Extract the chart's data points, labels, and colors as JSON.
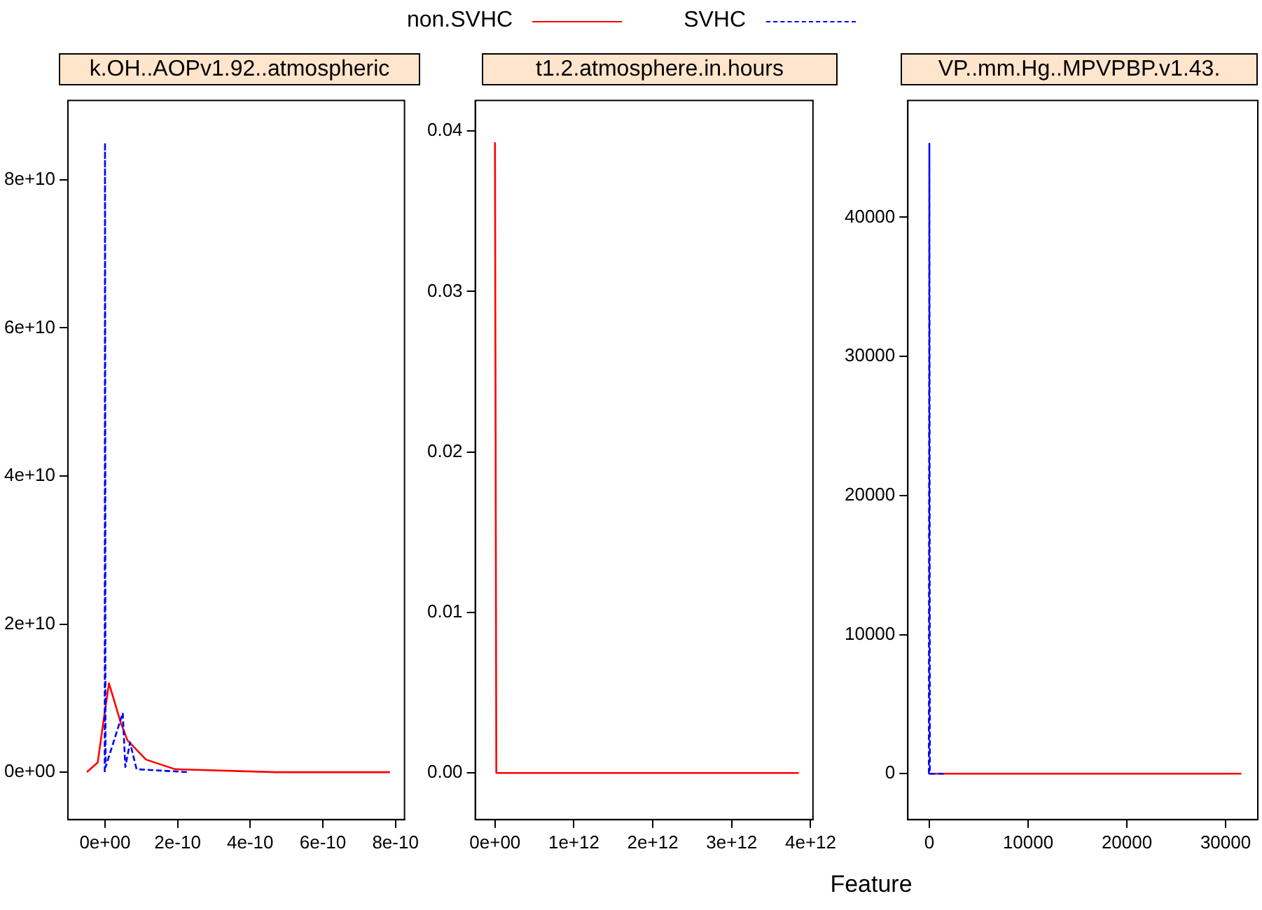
{
  "chart_data": [
    {
      "type": "line",
      "title": "k.OH..AOPv1.92..atmospheric",
      "legend": "top",
      "grid": false,
      "marker": "none",
      "xlim": [
        -1.02e-10,
        8.25e-10
      ],
      "xticks": [
        {
          "value": 0,
          "label": "0e+00"
        },
        {
          "value": 2e-10,
          "label": "2e-10"
        },
        {
          "value": 4e-10,
          "label": "4e-10"
        },
        {
          "value": 6e-10,
          "label": "6e-10"
        },
        {
          "value": 8e-10,
          "label": "8e-10"
        }
      ],
      "ylim": [
        -6400000000.0,
        90700000000.0
      ],
      "yticks": [
        {
          "value": 0,
          "label": "0e+00"
        },
        {
          "value": 20000000000.0,
          "label": "2e+10"
        },
        {
          "value": 40000000000.0,
          "label": "4e+10"
        },
        {
          "value": 60000000000.0,
          "label": "6e+10"
        },
        {
          "value": 80000000000.0,
          "label": "8e+10"
        }
      ],
      "series": [
        {
          "name": "non.SVHC",
          "color": "#ff0000",
          "line_style": "solid",
          "x": [
            -5e-11,
            -2e-11,
            -5e-12,
            1.1e-11,
            4.4e-11,
            6.2e-11,
            1.13e-10,
            1.93e-10,
            4.7e-10,
            7.85e-10
          ],
          "values": [
            0,
            1300000000.0,
            6600000000.0,
            12000000000.0,
            6600000000.0,
            4300000000.0,
            1700000000.0,
            400000000.0,
            0,
            0
          ]
        },
        {
          "name": "SVHC",
          "color": "#0000ff",
          "line_style": "dashed",
          "x": [
            -7e-13,
            1e-13,
            9e-13,
            1.1e-12,
            1.8e-12,
            4.9e-11,
            5.6e-11,
            6.9e-11,
            8.7e-11,
            2.3e-10
          ],
          "values": [
            0,
            85000000000.0,
            42000000000.0,
            13000000000.0,
            700000000.0,
            8000000000.0,
            700000000.0,
            4000000000.0,
            400000000.0,
            0
          ]
        }
      ]
    },
    {
      "type": "line",
      "title": "t1.2.atmosphere.in.hours",
      "xlabel": "Feature",
      "legend": false,
      "grid": false,
      "marker": "none",
      "xlim": [
        -250000000000.0,
        4030000000000.0
      ],
      "xticks": [
        {
          "value": 0,
          "label": "0e+00"
        },
        {
          "value": 1000000000000.0,
          "label": "1e+12"
        },
        {
          "value": 2000000000000.0,
          "label": "2e+12"
        },
        {
          "value": 3000000000000.0,
          "label": "3e+12"
        },
        {
          "value": 4000000000000.0,
          "label": "4e+12"
        }
      ],
      "ylim": [
        -0.0029,
        0.0419
      ],
      "yticks": [
        {
          "value": 0,
          "label": "0.00"
        },
        {
          "value": 0.01,
          "label": "0.01"
        },
        {
          "value": 0.02,
          "label": "0.02"
        },
        {
          "value": 0.03,
          "label": "0.03"
        },
        {
          "value": 0.04,
          "label": "0.04"
        }
      ],
      "series": [
        {
          "color": "#ff0000",
          "line_style": "solid",
          "x": [
            0,
            17000000000.0,
            3850000000000.0
          ],
          "values": [
            0.0393,
            0,
            0
          ]
        }
      ]
    },
    {
      "type": "line",
      "title": "VP..mm.Hg..MPVPBP.v1.43.",
      "legend": false,
      "grid": false,
      "marker": "none",
      "xlim": [
        -2180,
        33260
      ],
      "xticks": [
        0,
        10000,
        20000,
        30000
      ],
      "ylim": [
        -3300,
        48400
      ],
      "yticks": [
        0,
        10000,
        20000,
        30000,
        40000
      ],
      "series": [
        {
          "color": "#ff0000",
          "line_style": "solid",
          "x": [
            -100,
            0,
            200,
            31600
          ],
          "values": [
            0,
            0,
            0,
            0
          ]
        },
        {
          "color": "#0000ff",
          "line_style": "dashed",
          "x": [
            -50,
            0,
            50,
            1700
          ],
          "values": [
            0,
            45300,
            0,
            0
          ]
        }
      ]
    }
  ]
}
